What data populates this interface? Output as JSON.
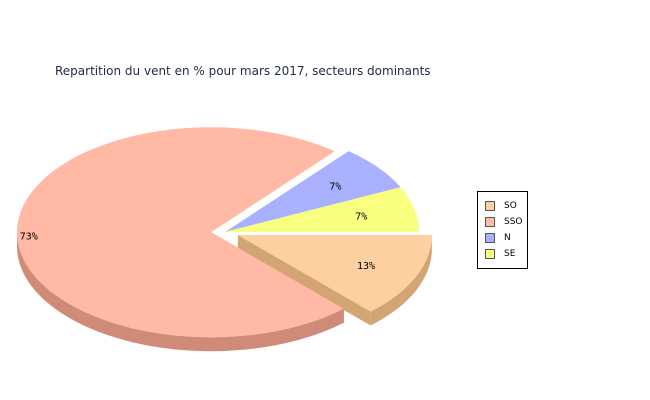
{
  "chart_data": {
    "type": "pie",
    "title": "Repartition du vent en % pour mars 2017, secteurs dominants",
    "slices": [
      {
        "label": "SO",
        "value": 13,
        "display": "13%",
        "color": "#fdd0a2",
        "side_color": "#d4a574",
        "exploded": true
      },
      {
        "label": "SSO",
        "value": 73,
        "display": "73%",
        "color": "#ffb9a4",
        "side_color": "#d08a78",
        "exploded": true
      },
      {
        "label": "N",
        "value": 7,
        "display": "7%",
        "color": "#a9b0ff",
        "side_color": "#8088cc",
        "exploded": false
      },
      {
        "label": "SE",
        "value": 7,
        "display": "7%",
        "color": "#f9ff7f",
        "side_color": "#c8cc5a",
        "exploded": false
      }
    ],
    "legend_position": "right"
  }
}
